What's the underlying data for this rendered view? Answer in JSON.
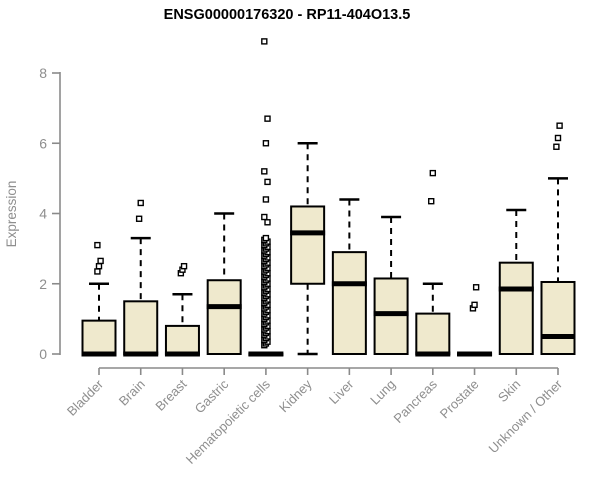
{
  "chart_data": {
    "type": "boxplot",
    "title": "ENSG00000176320 - RP11-404O13.5",
    "ylabel": "Expression",
    "xlabel": "",
    "ylim": [
      0,
      9
    ],
    "yticks": [
      0,
      2,
      4,
      6,
      8
    ],
    "grid": false,
    "legend": "none",
    "categories": [
      "Bladder",
      "Brain",
      "Breast",
      "Gastric",
      "Hematopoietic cells",
      "Kidney",
      "Liver",
      "Lung",
      "Pancreas",
      "Prostate",
      "Skin",
      "Unknown / Other"
    ],
    "series": [
      {
        "category": "Bladder",
        "q1": 0,
        "median": 0,
        "q3": 0.95,
        "whisker_low": 0,
        "whisker_high": 2.0,
        "outliers": [
          2.35,
          2.5,
          2.65,
          3.1
        ]
      },
      {
        "category": "Brain",
        "q1": 0,
        "median": 0,
        "q3": 1.5,
        "whisker_low": 0,
        "whisker_high": 3.3,
        "outliers": [
          3.85,
          4.3
        ]
      },
      {
        "category": "Breast",
        "q1": 0,
        "median": 0,
        "q3": 0.8,
        "whisker_low": 0,
        "whisker_high": 1.7,
        "outliers": [
          2.3,
          2.4,
          2.5
        ]
      },
      {
        "category": "Gastric",
        "q1": 0,
        "median": 1.35,
        "q3": 2.1,
        "whisker_low": 0,
        "whisker_high": 4.0,
        "outliers": []
      },
      {
        "category": "Hematopoietic cells",
        "q1": 0,
        "median": 0,
        "q3": 0,
        "whisker_low": 0,
        "whisker_high": 0,
        "outliers": [
          0.25,
          0.3,
          0.35,
          0.4,
          0.45,
          0.5,
          0.55,
          0.6,
          0.65,
          0.7,
          0.75,
          0.8,
          0.85,
          0.9,
          0.95,
          1,
          1.05,
          1.1,
          1.15,
          1.2,
          1.25,
          1.3,
          1.35,
          1.4,
          1.45,
          1.5,
          1.55,
          1.6,
          1.65,
          1.7,
          1.75,
          1.8,
          1.85,
          1.9,
          1.95,
          2,
          2.05,
          2.1,
          2.15,
          2.2,
          2.25,
          2.3,
          2.35,
          2.4,
          2.45,
          2.5,
          2.55,
          2.6,
          2.65,
          2.7,
          2.75,
          2.8,
          2.85,
          2.9,
          2.95,
          3,
          3.05,
          3.1,
          3.15,
          3.2,
          3.25,
          3.3,
          3.75,
          3.9,
          4.4,
          4.9,
          5.2,
          6.0,
          6.7,
          8.9
        ]
      },
      {
        "category": "Kidney",
        "q1": 2.0,
        "median": 3.45,
        "q3": 4.2,
        "whisker_low": 0,
        "whisker_high": 6.0,
        "outliers": []
      },
      {
        "category": "Liver",
        "q1": 0,
        "median": 2.0,
        "q3": 2.9,
        "whisker_low": 0,
        "whisker_high": 4.4,
        "outliers": []
      },
      {
        "category": "Lung",
        "q1": 0,
        "median": 1.15,
        "q3": 2.15,
        "whisker_low": 0,
        "whisker_high": 3.9,
        "outliers": []
      },
      {
        "category": "Pancreas",
        "q1": 0,
        "median": 0,
        "q3": 1.15,
        "whisker_low": 0,
        "whisker_high": 2.0,
        "outliers": [
          4.35,
          5.15
        ]
      },
      {
        "category": "Prostate",
        "q1": 0,
        "median": 0,
        "q3": 0,
        "whisker_low": 0,
        "whisker_high": 0,
        "outliers": [
          1.3,
          1.4,
          1.9
        ]
      },
      {
        "category": "Skin",
        "q1": 0,
        "median": 1.85,
        "q3": 2.6,
        "whisker_low": 0,
        "whisker_high": 4.1,
        "outliers": []
      },
      {
        "category": "Unknown / Other",
        "q1": 0,
        "median": 0.5,
        "q3": 2.05,
        "whisker_low": 0,
        "whisker_high": 5.0,
        "outliers": [
          5.9,
          6.15,
          6.5
        ]
      }
    ],
    "colors": {
      "box_fill": "#efe9cd",
      "box_border": "#000000",
      "median": "#000000",
      "whisker": "#000000",
      "outlier_stroke": "#000000",
      "outlier_fill": "#ffffff",
      "axis": "#8a8a8a",
      "tick_label": "#8e8e8e",
      "title": "#000000",
      "background": "#ffffff"
    }
  }
}
